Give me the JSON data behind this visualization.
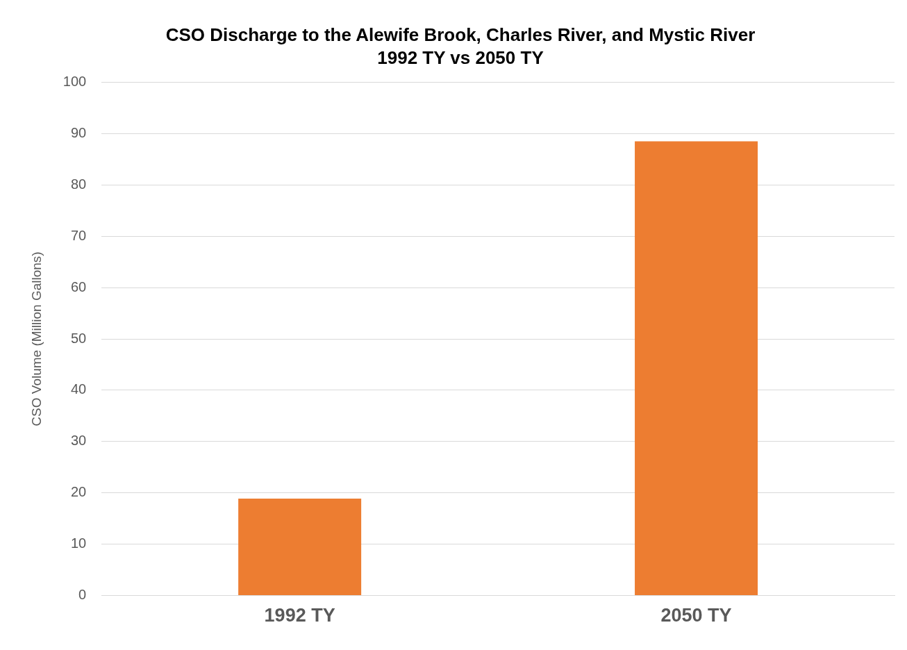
{
  "chart_data": {
    "type": "bar",
    "title": "CSO Discharge to the Alewife Brook, Charles River, and Mystic River",
    "subtitle": "1992 TY vs 2050 TY",
    "ylabel": "CSO Volume (Million Gallons)",
    "categories": [
      "1992 TY",
      "2050 TY"
    ],
    "values": [
      18.9,
      88.5
    ],
    "color": "#ed7d31",
    "ylim": [
      0,
      100
    ],
    "yticks": [
      0,
      10,
      20,
      30,
      40,
      50,
      60,
      70,
      80,
      90,
      100
    ],
    "grid": "y",
    "legend": false
  }
}
